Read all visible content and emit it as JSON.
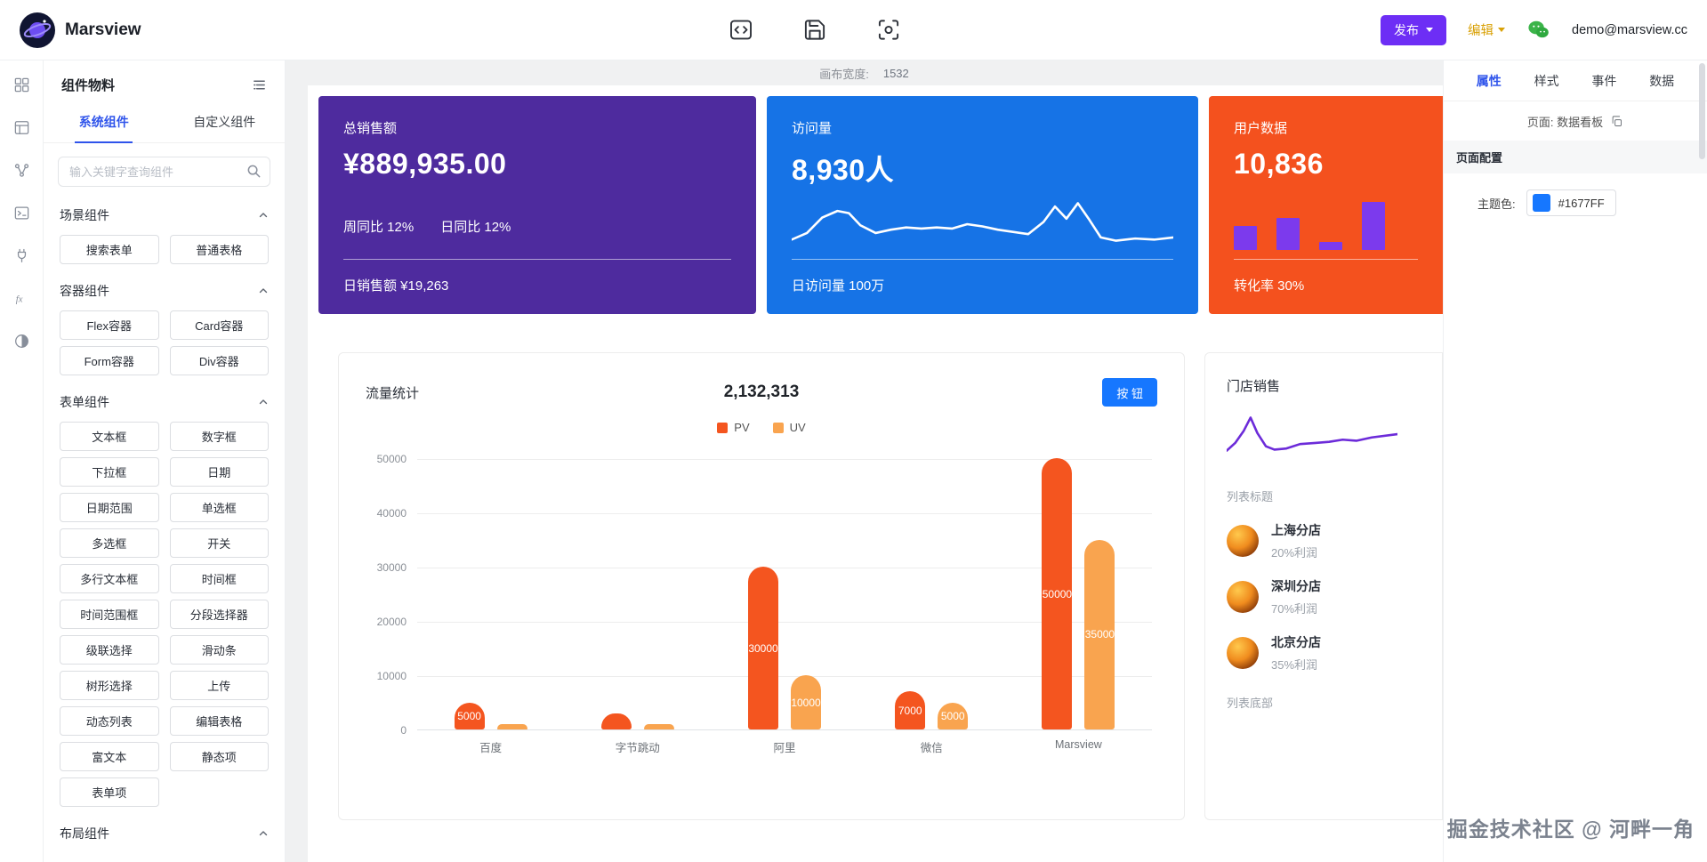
{
  "colors": {
    "theme": "#1677FF",
    "publish": "#6D2EF5",
    "edit": "#D9A106",
    "tab_active": "#2F54EB",
    "card_purple": "#4E2B9E",
    "card_blue": "#1673E6",
    "card_orange": "#F4511E",
    "pv": "#F4551F",
    "uv": "#F9A44F",
    "mini_bar": "#7C3AED",
    "store_line": "#6C2BD9"
  },
  "topbar": {
    "brand": "Marsview",
    "icons": [
      "code",
      "save",
      "preview"
    ],
    "publish_label": "发布",
    "edit_label": "编辑",
    "email": "demo@marsview.cc"
  },
  "rail": {
    "icons": [
      "components",
      "pages",
      "flow",
      "terminal",
      "api",
      "fx",
      "theme"
    ]
  },
  "sidebar": {
    "title": "组件物料",
    "tabs": [
      {
        "label": "系统组件",
        "active": true
      },
      {
        "label": "自定义组件",
        "active": false
      }
    ],
    "search_placeholder": "输入关键字查询组件",
    "sections": [
      {
        "title": "场景组件",
        "items": [
          "搜索表单",
          "普通表格"
        ]
      },
      {
        "title": "容器组件",
        "items": [
          "Flex容器",
          "Card容器",
          "Form容器",
          "Div容器"
        ]
      },
      {
        "title": "表单组件",
        "items": [
          "文本框",
          "数字框",
          "下拉框",
          "日期",
          "日期范围",
          "单选框",
          "多选框",
          "开关",
          "多行文本框",
          "时间框",
          "时间范围框",
          "分段选择器",
          "级联选择",
          "滑动条",
          "树形选择",
          "上传",
          "动态列表",
          "编辑表格",
          "富文本",
          "静态项",
          "表单项"
        ]
      },
      {
        "title": "布局组件",
        "items": []
      }
    ]
  },
  "canvas": {
    "width_label": "画布宽度:",
    "width_value": "1532",
    "stat_cards": [
      {
        "title": "总销售额",
        "value": "¥889,935.00",
        "metrics": [
          "周同比 12%",
          "日同比 12%"
        ],
        "footer": "日销售额 ¥19,263"
      },
      {
        "title": "访问量",
        "value": "8,930人",
        "footer": "日访问量 100万"
      },
      {
        "title": "用户数据",
        "value": "10,836",
        "footer": "转化率 30%"
      }
    ]
  },
  "store": {
    "title": "门店销售",
    "list_header": "列表标题",
    "items": [
      {
        "name": "上海分店",
        "profit": "20%利润"
      },
      {
        "name": "深圳分店",
        "profit": "70%利润"
      },
      {
        "name": "北京分店",
        "profit": "35%利润"
      }
    ],
    "list_footer": "列表底部"
  },
  "inspector": {
    "tabs": [
      {
        "label": "属性",
        "active": true
      },
      {
        "label": "样式",
        "active": false
      },
      {
        "label": "事件",
        "active": false
      },
      {
        "label": "数据",
        "active": false
      }
    ],
    "page_label": "页面: 数据看板",
    "section_title": "页面配置",
    "theme_label": "主题色:",
    "theme_value": "#1677FF"
  },
  "watermark": "掘金技术社区 @ 河畔一角",
  "chart_data": [
    {
      "id": "traffic",
      "type": "bar",
      "title": "流量统计",
      "total_label": "2,132,313",
      "button_label": "按 钮",
      "categories": [
        "百度",
        "字节跳动",
        "阿里",
        "微信",
        "Marsview"
      ],
      "series": [
        {
          "name": "PV",
          "color": "#F4551F",
          "values": [
            5000,
            3000,
            30000,
            7000,
            50000
          ]
        },
        {
          "name": "UV",
          "color": "#F9A44F",
          "values": [
            1000,
            1000,
            10000,
            5000,
            35000
          ]
        }
      ],
      "ylim": [
        0,
        50000
      ],
      "ytick_step": 10000,
      "grid": true,
      "legend_position": "top-center"
    },
    {
      "id": "visits-spark",
      "type": "line",
      "color": "#FFFFFF",
      "points": [
        [
          0,
          78
        ],
        [
          4,
          66
        ],
        [
          8,
          38
        ],
        [
          12,
          26
        ],
        [
          15,
          30
        ],
        [
          18,
          52
        ],
        [
          22,
          66
        ],
        [
          26,
          60
        ],
        [
          30,
          56
        ],
        [
          34,
          58
        ],
        [
          38,
          56
        ],
        [
          42,
          58
        ],
        [
          46,
          50
        ],
        [
          50,
          54
        ],
        [
          54,
          60
        ],
        [
          58,
          64
        ],
        [
          62,
          68
        ],
        [
          66,
          46
        ],
        [
          69,
          18
        ],
        [
          72,
          40
        ],
        [
          75,
          12
        ],
        [
          78,
          42
        ],
        [
          81,
          74
        ],
        [
          85,
          80
        ],
        [
          90,
          76
        ],
        [
          95,
          78
        ],
        [
          100,
          74
        ]
      ]
    },
    {
      "id": "user-bars",
      "type": "bar",
      "color": "#7C3AED",
      "values": [
        30,
        40,
        10,
        60
      ],
      "ylim": [
        0,
        60
      ]
    },
    {
      "id": "store-spark",
      "type": "line",
      "color": "#6C2BD9",
      "points": [
        [
          0,
          72
        ],
        [
          5,
          58
        ],
        [
          10,
          36
        ],
        [
          14,
          12
        ],
        [
          18,
          40
        ],
        [
          23,
          64
        ],
        [
          28,
          70
        ],
        [
          35,
          68
        ],
        [
          43,
          60
        ],
        [
          52,
          58
        ],
        [
          60,
          56
        ],
        [
          68,
          52
        ],
        [
          76,
          54
        ],
        [
          85,
          48
        ],
        [
          100,
          42
        ]
      ]
    }
  ]
}
